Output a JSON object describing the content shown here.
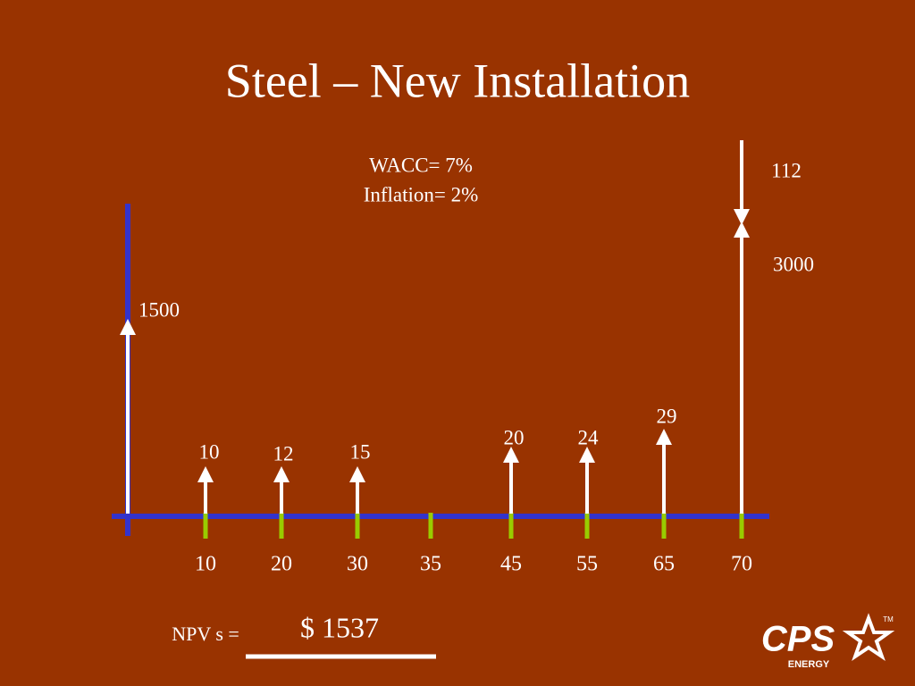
{
  "title": "Steel – New Installation",
  "rates": [
    "WACC= 7%",
    "Inflation= 2%"
  ],
  "timeline": [
    10,
    20,
    30,
    35,
    45,
    55,
    65,
    70
  ],
  "cash_flows": [
    1500,
    10,
    12,
    15,
    20,
    24,
    29,
    3000,
    112
  ],
  "npv": {
    "label": "NPV s =",
    "value": "$ 1537"
  },
  "logo": {
    "name": "CPS",
    "sub": "ENERGY",
    "tm": "TM"
  }
}
